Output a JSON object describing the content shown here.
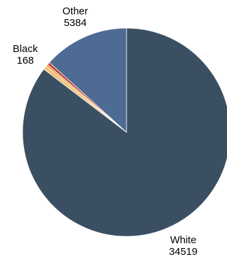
{
  "chart_data": {
    "type": "pie",
    "start": "top",
    "direction": "clockwise",
    "slices": [
      {
        "label": "White",
        "value": 34519,
        "color": "#3b4f63",
        "show_label": true
      },
      {
        "label": "",
        "value": 250,
        "color": "#f2c27a",
        "show_label": false
      },
      {
        "label": "",
        "value": 120,
        "color": "#e8963a",
        "show_label": false
      },
      {
        "label": "Black",
        "value": 168,
        "color": "#c0392b",
        "show_label": true
      },
      {
        "label": "Other",
        "value": 5384,
        "color": "#4f6b94",
        "show_label": true
      }
    ]
  }
}
